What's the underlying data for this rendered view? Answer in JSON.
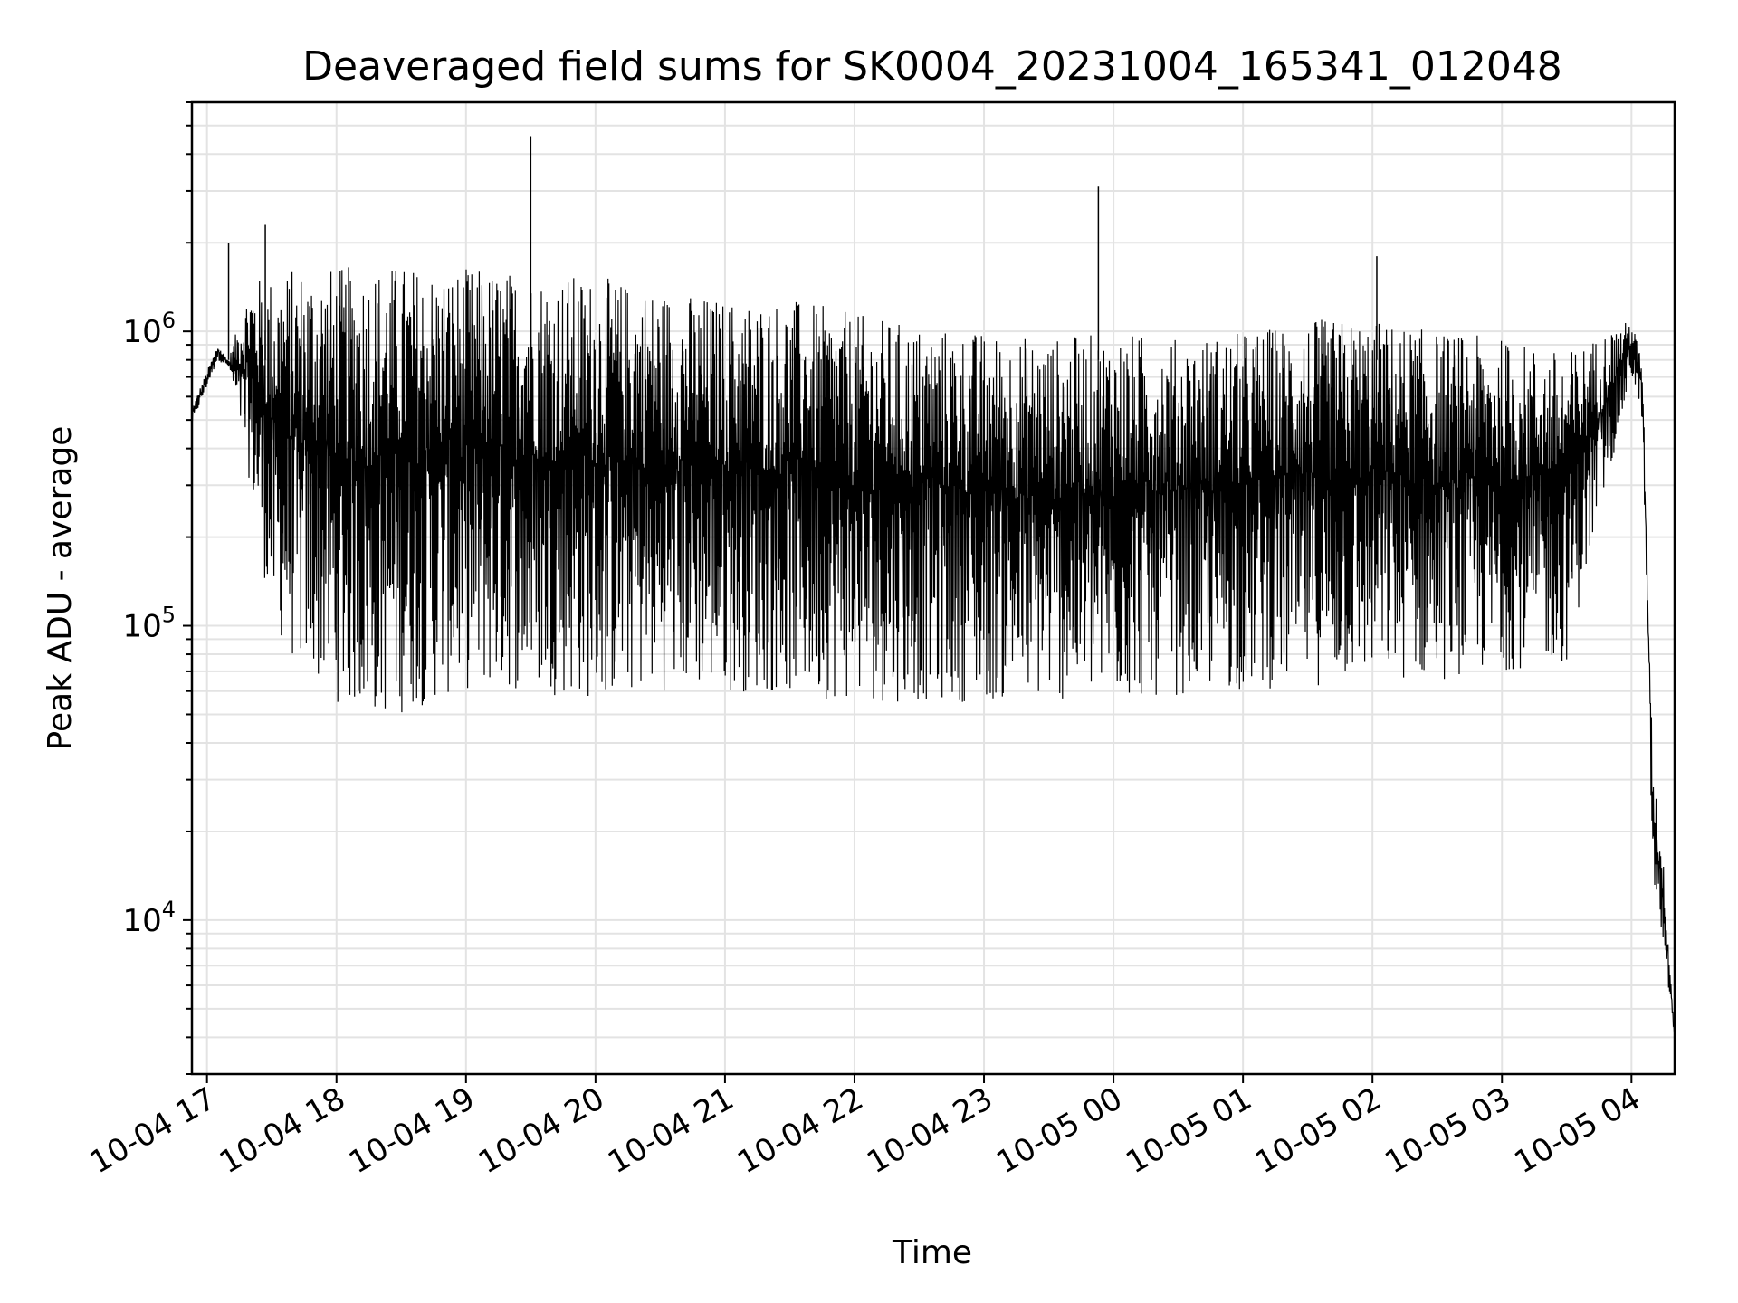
{
  "chart_data": {
    "type": "line",
    "title": "Deaveraged field sums for SK0004_20231004_165341_012048",
    "xlabel": "Time",
    "ylabel": "Peak ADU - average",
    "yscale": "log",
    "ylim": [
      3000,
      6000000
    ],
    "xlim": [
      "2023-10-04 16:53",
      "2023-10-05 04:20"
    ],
    "x_ticks": [
      "10-04 17",
      "10-04 18",
      "10-04 19",
      "10-04 20",
      "10-04 21",
      "10-04 22",
      "10-04 23",
      "10-05 00",
      "10-05 01",
      "10-05 02",
      "10-05 03",
      "10-05 04"
    ],
    "y_ticks": [
      {
        "value": 10000,
        "base": "10",
        "exp": "4"
      },
      {
        "value": 100000,
        "base": "10",
        "exp": "5"
      },
      {
        "value": 1000000,
        "base": "10",
        "exp": "6"
      }
    ],
    "grid": true,
    "line_color": "#000000",
    "series": [
      {
        "x": [
          "2023-10-04 16:53",
          "2023-10-04 17:05",
          "2023-10-04 17:10",
          "2023-10-04 17:20",
          "2023-10-04 17:30",
          "2023-10-04 17:40",
          "2023-10-04 17:50",
          "2023-10-04 18:00",
          "2023-10-04 18:15",
          "2023-10-04 18:30",
          "2023-10-04 18:45",
          "2023-10-04 19:00",
          "2023-10-04 19:30",
          "2023-10-04 20:00",
          "2023-10-04 20:30",
          "2023-10-04 21:00",
          "2023-10-04 21:30",
          "2023-10-04 22:00",
          "2023-10-04 22:30",
          "2023-10-04 23:00",
          "2023-10-04 23:30",
          "2023-10-05 00:00",
          "2023-10-05 00:30",
          "2023-10-05 01:00",
          "2023-10-05 01:30",
          "2023-10-05 02:00",
          "2023-10-05 02:30",
          "2023-10-05 03:00",
          "2023-10-05 03:30",
          "2023-10-05 04:00",
          "2023-10-05 04:05",
          "2023-10-05 04:10",
          "2023-10-05 04:15",
          "2023-10-05 04:20"
        ],
        "upper": [
          550000,
          900000,
          800000,
          1500000,
          1550000,
          1650000,
          1700000,
          1650000,
          1700000,
          1700000,
          1650000,
          1650000,
          1600000,
          1550000,
          1400000,
          1300000,
          1300000,
          1150000,
          1050000,
          1000000,
          950000,
          1000000,
          950000,
          1000000,
          1100000,
          1100000,
          1000000,
          950000,
          850000,
          1100000,
          800000,
          35000,
          15000,
          4000
        ],
        "lower": [
          480000,
          800000,
          750000,
          300000,
          100000,
          75000,
          65000,
          55000,
          48000,
          50000,
          55000,
          60000,
          60000,
          55000,
          60000,
          60000,
          58000,
          55000,
          55000,
          55000,
          55000,
          55000,
          58000,
          60000,
          62000,
          65000,
          65000,
          70000,
          75000,
          700000,
          500000,
          12000,
          8000,
          4000
        ]
      }
    ],
    "spikes": [
      {
        "x": "2023-10-04 17:10",
        "y": 2000000
      },
      {
        "x": "2023-10-04 17:27",
        "y": 2300000
      },
      {
        "x": "2023-10-04 19:30",
        "y": 4600000
      },
      {
        "x": "2023-10-04 23:53",
        "y": 3100000
      },
      {
        "x": "2023-10-05 02:02",
        "y": 1800000
      }
    ]
  }
}
